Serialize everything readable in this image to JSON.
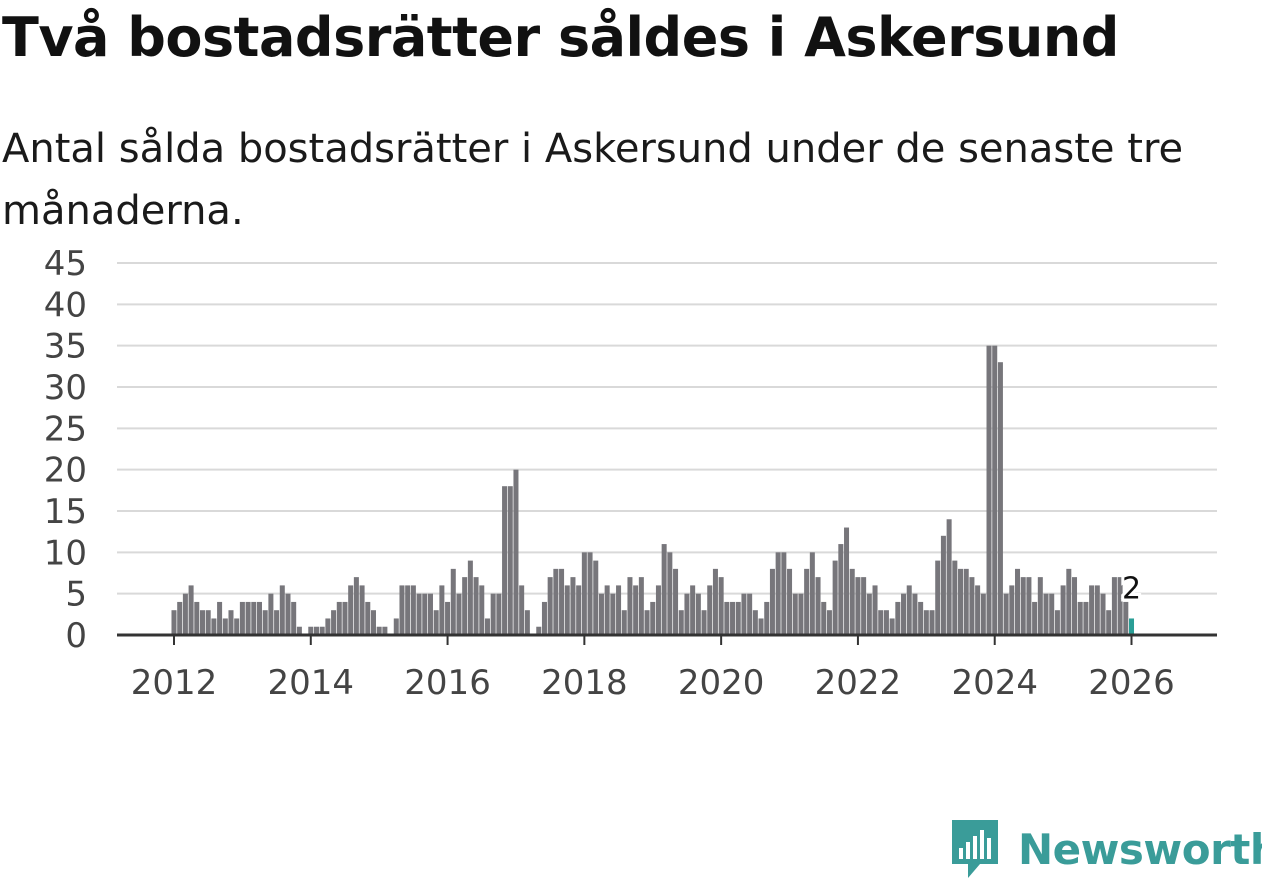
{
  "header": {
    "title": "Två bostadsrätter såldes i Askersund",
    "subtitle": "Antal sålda bostadsrätter i Askersund under de senaste tre månaderna."
  },
  "brand": {
    "name": "Newsworthy",
    "color": "#3a9c99"
  },
  "colors": {
    "bar": "#77767b",
    "highlight": "#2a9e96",
    "grid": "#d9d9d9",
    "axis": "#333333",
    "tick": "#444444"
  },
  "chart_data": {
    "type": "bar",
    "title": "Två bostadsrätter såldes i Askersund",
    "xlabel": "",
    "ylabel": "",
    "ylim": [
      0,
      45
    ],
    "yticks": [
      0,
      5,
      10,
      15,
      20,
      25,
      30,
      35,
      40,
      45
    ],
    "xlim": [
      "2011-03",
      "2027-04"
    ],
    "xticks": [
      "2012",
      "2014",
      "2016",
      "2018",
      "2020",
      "2022",
      "2024",
      "2026"
    ],
    "start": "2012-01",
    "grid": true,
    "highlight_label": "2",
    "values": [
      3,
      4,
      5,
      6,
      4,
      3,
      3,
      2,
      4,
      2,
      3,
      2,
      4,
      4,
      4,
      4,
      3,
      5,
      3,
      6,
      5,
      4,
      1,
      0,
      1,
      1,
      1,
      2,
      3,
      4,
      4,
      6,
      7,
      6,
      4,
      3,
      1,
      1,
      0,
      2,
      6,
      6,
      6,
      5,
      5,
      5,
      3,
      6,
      4,
      8,
      5,
      7,
      9,
      7,
      6,
      2,
      5,
      5,
      18,
      18,
      20,
      6,
      3,
      0,
      1,
      4,
      7,
      8,
      8,
      6,
      7,
      6,
      10,
      10,
      9,
      5,
      6,
      5,
      6,
      3,
      7,
      6,
      7,
      3,
      4,
      6,
      11,
      10,
      8,
      3,
      5,
      6,
      5,
      3,
      6,
      8,
      7,
      4,
      4,
      4,
      5,
      5,
      3,
      2,
      4,
      8,
      10,
      10,
      8,
      5,
      5,
      8,
      10,
      7,
      4,
      3,
      9,
      11,
      13,
      8,
      7,
      7,
      5,
      6,
      3,
      3,
      2,
      4,
      5,
      6,
      5,
      4,
      3,
      3,
      9,
      12,
      14,
      9,
      8,
      8,
      7,
      6,
      5,
      35,
      35,
      33,
      5,
      6,
      8,
      7,
      7,
      4,
      7,
      5,
      5,
      3,
      6,
      8,
      7,
      4,
      4,
      6,
      6,
      5,
      3,
      7,
      7,
      4,
      2
    ]
  }
}
